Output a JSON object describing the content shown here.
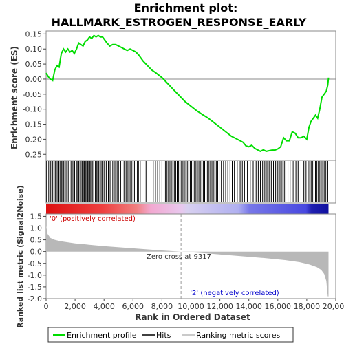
{
  "chart_data": {
    "type": "line",
    "title": "Enrichment plot: HALLMARK_ESTROGEN_RESPONSE_EARLY",
    "title_line1": "Enrichment plot:",
    "title_line2": "HALLMARK_ESTROGEN_RESPONSE_EARLY",
    "xlabel": "Rank in Ordered Dataset",
    "es_panel": {
      "ylabel": "Enrichment score (ES)",
      "ylim": [
        -0.27,
        0.16
      ],
      "yticks": [
        -0.25,
        -0.2,
        -0.15,
        -0.1,
        -0.05,
        0.0,
        0.05,
        0.1,
        0.15
      ],
      "ytick_labels": [
        "-0.25",
        "-0.20",
        "-0.15",
        "-0.10",
        "-0.05",
        "0.00",
        "0.05",
        "0.10",
        "0.15"
      ],
      "line_color": "#00dd00",
      "series": [
        {
          "name": "Enrichment profile",
          "x": [
            0,
            150,
            300,
            450,
            600,
            750,
            900,
            1050,
            1200,
            1350,
            1500,
            1650,
            1800,
            1950,
            2100,
            2250,
            2400,
            2550,
            2700,
            2850,
            3000,
            3150,
            3300,
            3450,
            3600,
            3750,
            3900,
            4050,
            4200,
            4400,
            4600,
            4800,
            5000,
            5200,
            5400,
            5600,
            5800,
            6000,
            6200,
            6400,
            6700,
            7000,
            7300,
            7600,
            8000,
            8400,
            8800,
            9200,
            9600,
            10000,
            10400,
            10800,
            11200,
            11600,
            12000,
            12400,
            12800,
            13200,
            13600,
            13800,
            14000,
            14200,
            14400,
            14600,
            14800,
            15000,
            15200,
            15400,
            15600,
            15800,
            16000,
            16200,
            16400,
            16600,
            16800,
            17000,
            17200,
            17400,
            17600,
            17800,
            18000,
            18150,
            18300,
            18450,
            18600,
            18750,
            18900,
            19050,
            19200,
            19350,
            19450,
            19500
          ],
          "y": [
            0.02,
            0.008,
            0.0,
            -0.005,
            0.03,
            0.045,
            0.04,
            0.085,
            0.1,
            0.09,
            0.1,
            0.09,
            0.095,
            0.085,
            0.1,
            0.12,
            0.115,
            0.11,
            0.125,
            0.13,
            0.14,
            0.135,
            0.145,
            0.14,
            0.145,
            0.14,
            0.14,
            0.13,
            0.12,
            0.11,
            0.115,
            0.115,
            0.11,
            0.105,
            0.1,
            0.095,
            0.1,
            0.095,
            0.09,
            0.08,
            0.06,
            0.045,
            0.03,
            0.02,
            0.005,
            -0.015,
            -0.035,
            -0.055,
            -0.075,
            -0.09,
            -0.105,
            -0.118,
            -0.13,
            -0.145,
            -0.16,
            -0.175,
            -0.19,
            -0.2,
            -0.21,
            -0.222,
            -0.225,
            -0.22,
            -0.23,
            -0.235,
            -0.24,
            -0.235,
            -0.24,
            -0.238,
            -0.236,
            -0.236,
            -0.232,
            -0.225,
            -0.195,
            -0.205,
            -0.205,
            -0.175,
            -0.18,
            -0.195,
            -0.195,
            -0.19,
            -0.2,
            -0.16,
            -0.14,
            -0.13,
            -0.12,
            -0.13,
            -0.1,
            -0.06,
            -0.05,
            -0.04,
            -0.02,
            0.005
          ]
        }
      ]
    },
    "hits": {
      "name": "Hits",
      "positions": [
        40,
        180,
        320,
        460,
        560,
        650,
        760,
        880,
        960,
        1080,
        1150,
        1220,
        1300,
        1380,
        1450,
        1530,
        1720,
        1850,
        1970,
        2100,
        2180,
        2260,
        2340,
        2420,
        2500,
        2570,
        2640,
        2720,
        2800,
        2870,
        2940,
        3010,
        3080,
        3150,
        3220,
        3300,
        3400,
        3480,
        3560,
        3640,
        3720,
        3800,
        3880,
        4000,
        4150,
        4300,
        4420,
        4600,
        4750,
        4900,
        5000,
        5150,
        5250,
        5380,
        5520,
        5650,
        5800,
        5900,
        6000,
        6100,
        6200,
        6300,
        6380,
        6500,
        6900,
        7400,
        7550,
        7700,
        7850,
        8000,
        8150,
        8250,
        8350,
        8450,
        8550,
        8650,
        8750,
        8850,
        8950,
        9050,
        9150,
        9250,
        9350,
        9450,
        9550,
        9650,
        9750,
        9850,
        9950,
        10050,
        10150,
        10250,
        10350,
        10450,
        10550,
        10650,
        10750,
        10850,
        10950,
        11050,
        11150,
        11250,
        11350,
        11450,
        11550,
        11650,
        11750,
        11850,
        11950,
        12100,
        12250,
        12400,
        12550,
        12700,
        12850,
        13000,
        13200,
        13400,
        13550,
        13700,
        13900,
        14100,
        14300,
        14500,
        14650,
        14800,
        14950,
        15100,
        15250,
        15400,
        15550,
        15700,
        15850,
        16000,
        16150,
        16250,
        16350,
        16450,
        16550,
        16700,
        16850,
        17000,
        17100,
        17250,
        17400,
        17600,
        17800,
        17950,
        18100,
        18200,
        18300,
        18400,
        18500,
        18600,
        18700,
        18800,
        18900,
        19000,
        19100,
        19200,
        19300,
        19400,
        19450
      ]
    },
    "rank_panel": {
      "ylabel": "Ranked list metric (Signal2Noise)",
      "ylim": [
        -2.0,
        1.6
      ],
      "yticks": [
        1.5,
        1.0,
        0.5,
        0.0,
        -0.5,
        -1.0,
        -1.5,
        -2.0
      ],
      "ytick_labels": [
        "1.5",
        "1.0",
        "0.5",
        "0.0",
        "-0.5",
        "-1.0",
        "-1.5",
        "-2.0"
      ],
      "fill_color": "#b8b8b8",
      "metric_series": {
        "name": "Ranking metric scores",
        "x": [
          0,
          100,
          300,
          600,
          1000,
          2000,
          4000,
          6000,
          8000,
          9317,
          11000,
          13000,
          15000,
          16500,
          17500,
          18200,
          18700,
          19000,
          19200,
          19350,
          19450,
          19500
        ],
        "y": [
          1.1,
          0.75,
          0.58,
          0.5,
          0.44,
          0.35,
          0.23,
          0.14,
          0.05,
          0.0,
          -0.07,
          -0.17,
          -0.27,
          -0.36,
          -0.45,
          -0.55,
          -0.66,
          -0.78,
          -0.95,
          -1.25,
          -1.9,
          -1.9
        ]
      },
      "zero_cross_label": "Zero cross at 9317",
      "zero_cross_rank": 9317,
      "positive_label": "'0' (positively correlated)",
      "negative_label": "'2' (negatively correlated)",
      "positive_color": "#cc0000",
      "negative_color": "#0000cc"
    },
    "xlim": [
      0,
      20000
    ],
    "xticks": [
      0,
      2000,
      4000,
      6000,
      8000,
      10000,
      12000,
      14000,
      16000,
      18000,
      20000
    ],
    "xtick_labels": [
      "0",
      "2,000",
      "4,000",
      "6,000",
      "8,000",
      "10,000",
      "12,000",
      "14,000",
      "16,000",
      "18,000",
      "20,000"
    ],
    "heatmap_end_rank": 19500,
    "legend": {
      "placement": "bottom",
      "items": [
        {
          "label": "Enrichment profile",
          "color": "#00dd00"
        },
        {
          "label": "Hits",
          "color": "#000000"
        },
        {
          "label": "Ranking metric scores",
          "color": "#b8b8b8"
        }
      ]
    }
  }
}
